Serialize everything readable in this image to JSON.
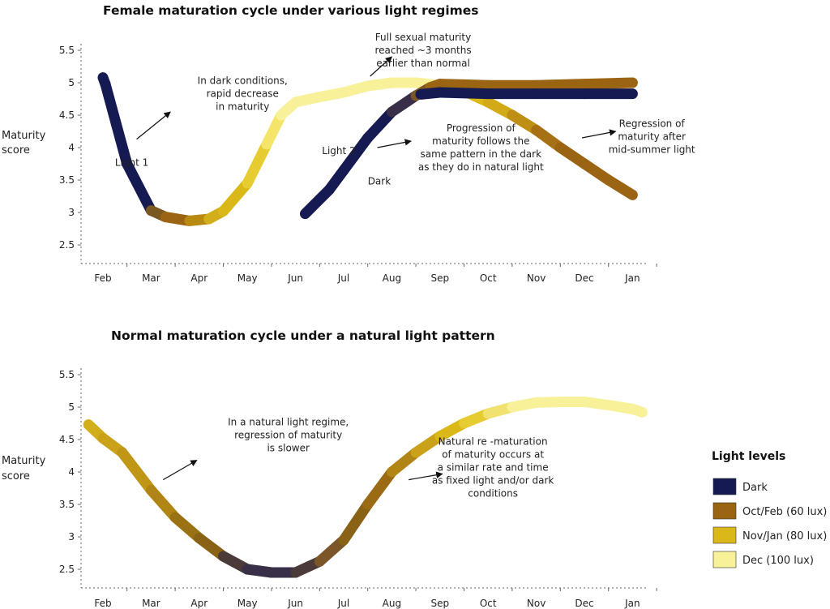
{
  "colors": {
    "dark": "#151a52",
    "oct_feb": "#9a6412",
    "nov_jan": "#d9b818",
    "dec": "#f8f19a"
  },
  "legend": {
    "title": "Light levels",
    "items": [
      {
        "label": "Dark",
        "color": "#151a52"
      },
      {
        "label": "Oct/Feb (60 lux)",
        "color": "#9a6412"
      },
      {
        "label": "Nov/Jan (80 lux)",
        "color": "#d9b818"
      },
      {
        "label": "Dec  (100 lux)",
        "color": "#f8f19a"
      }
    ]
  },
  "chart_data": [
    {
      "type": "line",
      "title": "Female maturation cycle under various light regimes",
      "ylabel": [
        "Maturity",
        "score"
      ],
      "categories": [
        "Feb",
        "Mar",
        "Apr",
        "May",
        "Jun",
        "Jul",
        "Aug",
        "Sep",
        "Oct",
        "Nov",
        "Dec",
        "Jan"
      ],
      "yticks": [
        2.5,
        3,
        3.5,
        4,
        4.5,
        5,
        5.5
      ],
      "ylim": [
        2.0,
        5.5
      ],
      "series": [
        {
          "name": "Light 1",
          "points": [
            {
              "x": 0.0,
              "y": 5.08,
              "color": "#f8f19a"
            },
            {
              "x": 0.05,
              "y": 4.98,
              "color": "#151a52"
            },
            {
              "x": 0.5,
              "y": 3.75,
              "color": "#151a52"
            },
            {
              "x": 1.0,
              "y": 3.03,
              "color": "#151a52"
            },
            {
              "x": 1.3,
              "y": 2.93,
              "color": "#7a5822"
            },
            {
              "x": 1.8,
              "y": 2.87,
              "color": "#9a6412"
            },
            {
              "x": 2.2,
              "y": 2.9,
              "color": "#b88a12"
            },
            {
              "x": 2.5,
              "y": 3.02,
              "color": "#d2ae1a"
            },
            {
              "x": 3.0,
              "y": 3.45,
              "color": "#d9b818"
            },
            {
              "x": 3.4,
              "y": 4.05,
              "color": "#e6cc30"
            },
            {
              "x": 3.7,
              "y": 4.5,
              "color": "#f4e56a"
            },
            {
              "x": 4.0,
              "y": 4.7,
              "color": "#f8f19a"
            },
            {
              "x": 4.5,
              "y": 4.78,
              "color": "#f8f19a"
            },
            {
              "x": 5.0,
              "y": 4.85,
              "color": "#f8f19a"
            },
            {
              "x": 5.5,
              "y": 4.95,
              "color": "#f8f19a"
            },
            {
              "x": 6.0,
              "y": 5.0,
              "color": "#f8f19a"
            },
            {
              "x": 6.5,
              "y": 5.0,
              "color": "#f8f19a"
            },
            {
              "x": 7.0,
              "y": 4.96,
              "color": "#f8f19a"
            },
            {
              "x": 7.5,
              "y": 4.87,
              "color": "#f1e270"
            },
            {
              "x": 8.0,
              "y": 4.7,
              "color": "#d9b818"
            },
            {
              "x": 8.5,
              "y": 4.5,
              "color": "#d2aa18"
            },
            {
              "x": 9.0,
              "y": 4.27,
              "color": "#bf8e15"
            },
            {
              "x": 9.5,
              "y": 4.0,
              "color": "#a87014"
            },
            {
              "x": 10.0,
              "y": 3.75,
              "color": "#9a6412"
            },
            {
              "x": 10.5,
              "y": 3.5,
              "color": "#9a6412"
            },
            {
              "x": 11.0,
              "y": 3.27,
              "color": "#9a6412"
            }
          ]
        },
        {
          "name": "Light 2",
          "points": [
            {
              "x": 4.2,
              "y": 2.98,
              "color": "#151a52"
            },
            {
              "x": 4.7,
              "y": 3.35,
              "color": "#151a52"
            },
            {
              "x": 5.0,
              "y": 3.65,
              "color": "#151a52"
            },
            {
              "x": 5.5,
              "y": 4.15,
              "color": "#151a52"
            },
            {
              "x": 6.0,
              "y": 4.55,
              "color": "#151a52"
            },
            {
              "x": 6.5,
              "y": 4.8,
              "color": "#3a2f48"
            },
            {
              "x": 6.8,
              "y": 4.93,
              "color": "#7a5628"
            },
            {
              "x": 7.0,
              "y": 4.98,
              "color": "#9a6412"
            },
            {
              "x": 7.5,
              "y": 4.97,
              "color": "#9a6412"
            },
            {
              "x": 8.0,
              "y": 4.96,
              "color": "#9a6412"
            },
            {
              "x": 9.0,
              "y": 4.96,
              "color": "#9a6412"
            },
            {
              "x": 10.0,
              "y": 4.98,
              "color": "#9a6412"
            },
            {
              "x": 11.0,
              "y": 5.0,
              "color": "#9a6412"
            }
          ]
        },
        {
          "name": "Dark",
          "points": [
            {
              "x": 6.6,
              "y": 4.82,
              "color": "#151a52"
            },
            {
              "x": 7.0,
              "y": 4.85,
              "color": "#151a52"
            },
            {
              "x": 8.0,
              "y": 4.83,
              "color": "#151a52"
            },
            {
              "x": 9.0,
              "y": 4.83,
              "color": "#151a52"
            },
            {
              "x": 10.0,
              "y": 4.83,
              "color": "#151a52"
            },
            {
              "x": 11.0,
              "y": 4.83,
              "color": "#151a52"
            }
          ]
        }
      ],
      "labels": [
        {
          "text": "Light 1",
          "x": 0.25,
          "y": 3.72
        },
        {
          "text": "Light 2",
          "x": 4.55,
          "y": 3.9
        },
        {
          "text": "Dark",
          "x": 5.5,
          "y": 3.43
        }
      ],
      "annotations": [
        {
          "lines": [
            "In dark conditions,",
            "rapid decrease",
            "in maturity"
          ],
          "x": 2.9,
          "y": 4.98,
          "arrow": [
            0.7,
            4.13,
            1.4,
            4.55
          ]
        },
        {
          "lines": [
            "Full sexual maturity",
            "reached ~3 months",
            "earlier than normal"
          ],
          "x": 6.65,
          "y": 5.65,
          "arrow": [
            5.55,
            5.1,
            6.0,
            5.4
          ]
        },
        {
          "lines": [
            "Progression of",
            "maturity follows the",
            "same pattern in the dark",
            "as they do in natural light"
          ],
          "x": 7.85,
          "y": 4.25,
          "arrow": [
            5.7,
            4.0,
            6.4,
            4.1
          ]
        },
        {
          "lines": [
            "Regression of",
            "maturity after",
            "mid-summer light"
          ],
          "x": 11.4,
          "y": 4.32,
          "arrow": [
            9.95,
            4.15,
            10.65,
            4.25
          ]
        }
      ]
    },
    {
      "type": "line",
      "title": "Normal maturation cycle under a natural light pattern",
      "ylabel": [
        "Maturity",
        "score"
      ],
      "categories": [
        "Feb",
        "Mar",
        "Apr",
        "May",
        "Jun",
        "Jul",
        "Aug",
        "Sep",
        "Oct",
        "Nov",
        "Dec",
        "Jan"
      ],
      "yticks": [
        2.5,
        3,
        3.5,
        4,
        4.5,
        5,
        5.5
      ],
      "ylim": [
        2.2,
        5.5
      ],
      "series": [
        {
          "name": "",
          "points": [
            {
              "x": -0.3,
              "y": 4.73,
              "color": "#d9b818"
            },
            {
              "x": 0.0,
              "y": 4.52,
              "color": "#d2ae1a"
            },
            {
              "x": 0.4,
              "y": 4.3,
              "color": "#c9a21a"
            },
            {
              "x": 1.0,
              "y": 3.72,
              "color": "#c09617"
            },
            {
              "x": 1.5,
              "y": 3.3,
              "color": "#b08516"
            },
            {
              "x": 2.0,
              "y": 2.98,
              "color": "#9a7214"
            },
            {
              "x": 2.5,
              "y": 2.7,
              "color": "#8a6216"
            },
            {
              "x": 3.0,
              "y": 2.5,
              "color": "#4a3a38"
            },
            {
              "x": 3.5,
              "y": 2.45,
              "color": "#3a2f48"
            },
            {
              "x": 4.0,
              "y": 2.45,
              "color": "#3a2f48"
            },
            {
              "x": 4.5,
              "y": 2.62,
              "color": "#4a3a38"
            },
            {
              "x": 5.0,
              "y": 2.95,
              "color": "#7a5628"
            },
            {
              "x": 5.5,
              "y": 3.5,
              "color": "#8a6216"
            },
            {
              "x": 6.0,
              "y": 4.0,
              "color": "#9a6a14"
            },
            {
              "x": 6.5,
              "y": 4.3,
              "color": "#b08516"
            },
            {
              "x": 7.0,
              "y": 4.55,
              "color": "#c9a21a"
            },
            {
              "x": 7.5,
              "y": 4.75,
              "color": "#d9b818"
            },
            {
              "x": 8.0,
              "y": 4.9,
              "color": "#e6cc30"
            },
            {
              "x": 8.5,
              "y": 5.0,
              "color": "#f1e270"
            },
            {
              "x": 9.0,
              "y": 5.07,
              "color": "#f8f19a"
            },
            {
              "x": 9.5,
              "y": 5.08,
              "color": "#f8f19a"
            },
            {
              "x": 10.0,
              "y": 5.08,
              "color": "#f8f19a"
            },
            {
              "x": 10.5,
              "y": 5.03,
              "color": "#f8f19a"
            },
            {
              "x": 11.0,
              "y": 4.97,
              "color": "#f8f19a"
            },
            {
              "x": 11.2,
              "y": 4.92,
              "color": "#f8f19a"
            }
          ]
        }
      ],
      "labels": [],
      "annotations": [
        {
          "lines": [
            "In a natural light regime,",
            "regression of maturity",
            "is slower"
          ],
          "x": 3.85,
          "y": 4.72,
          "arrow": [
            1.25,
            3.88,
            1.95,
            4.18
          ]
        },
        {
          "lines": [
            "Natural re -maturation",
            "of maturity occurs at",
            "a similar rate and time",
            "as fixed light and/or dark",
            "conditions"
          ],
          "x": 8.1,
          "y": 4.42,
          "arrow": [
            6.35,
            3.88,
            7.05,
            3.97
          ]
        }
      ]
    }
  ]
}
